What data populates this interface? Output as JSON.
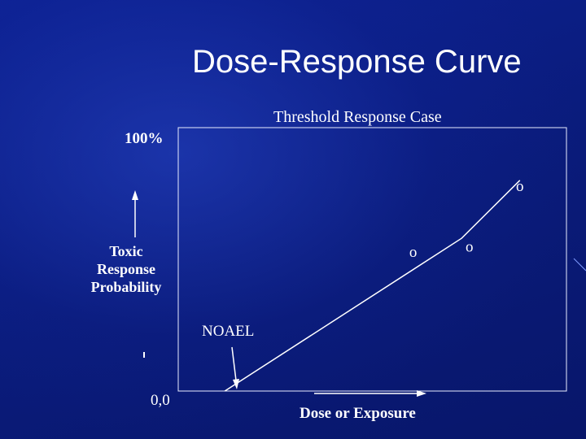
{
  "slide": {
    "title": "Dose-Response Curve"
  },
  "chart_data": {
    "type": "line",
    "title": "Threshold Response Case",
    "xlabel": "Dose or Exposure",
    "ylabel": "Toxic Response Probability",
    "y_top_label": "100%",
    "origin_label": "0,0",
    "annotations": [
      {
        "text": "NOAEL",
        "points_to_x": 0.12
      }
    ],
    "series": [
      {
        "x": [
          0.12,
          0.73,
          0.88
        ],
        "y": [
          0.0,
          0.58,
          0.8
        ]
      }
    ],
    "markers": [
      {
        "x": 0.605,
        "y": 0.51,
        "label": "o"
      },
      {
        "x": 0.75,
        "y": 0.53,
        "label": "o"
      },
      {
        "x": 0.88,
        "y": 0.76,
        "label": "o"
      }
    ],
    "xlim": [
      0,
      1
    ],
    "ylim": [
      0,
      1
    ],
    "grid": false,
    "colors": {
      "axis": "#ffffff",
      "line": "#ffffff",
      "background": "#0c1f8a"
    }
  }
}
